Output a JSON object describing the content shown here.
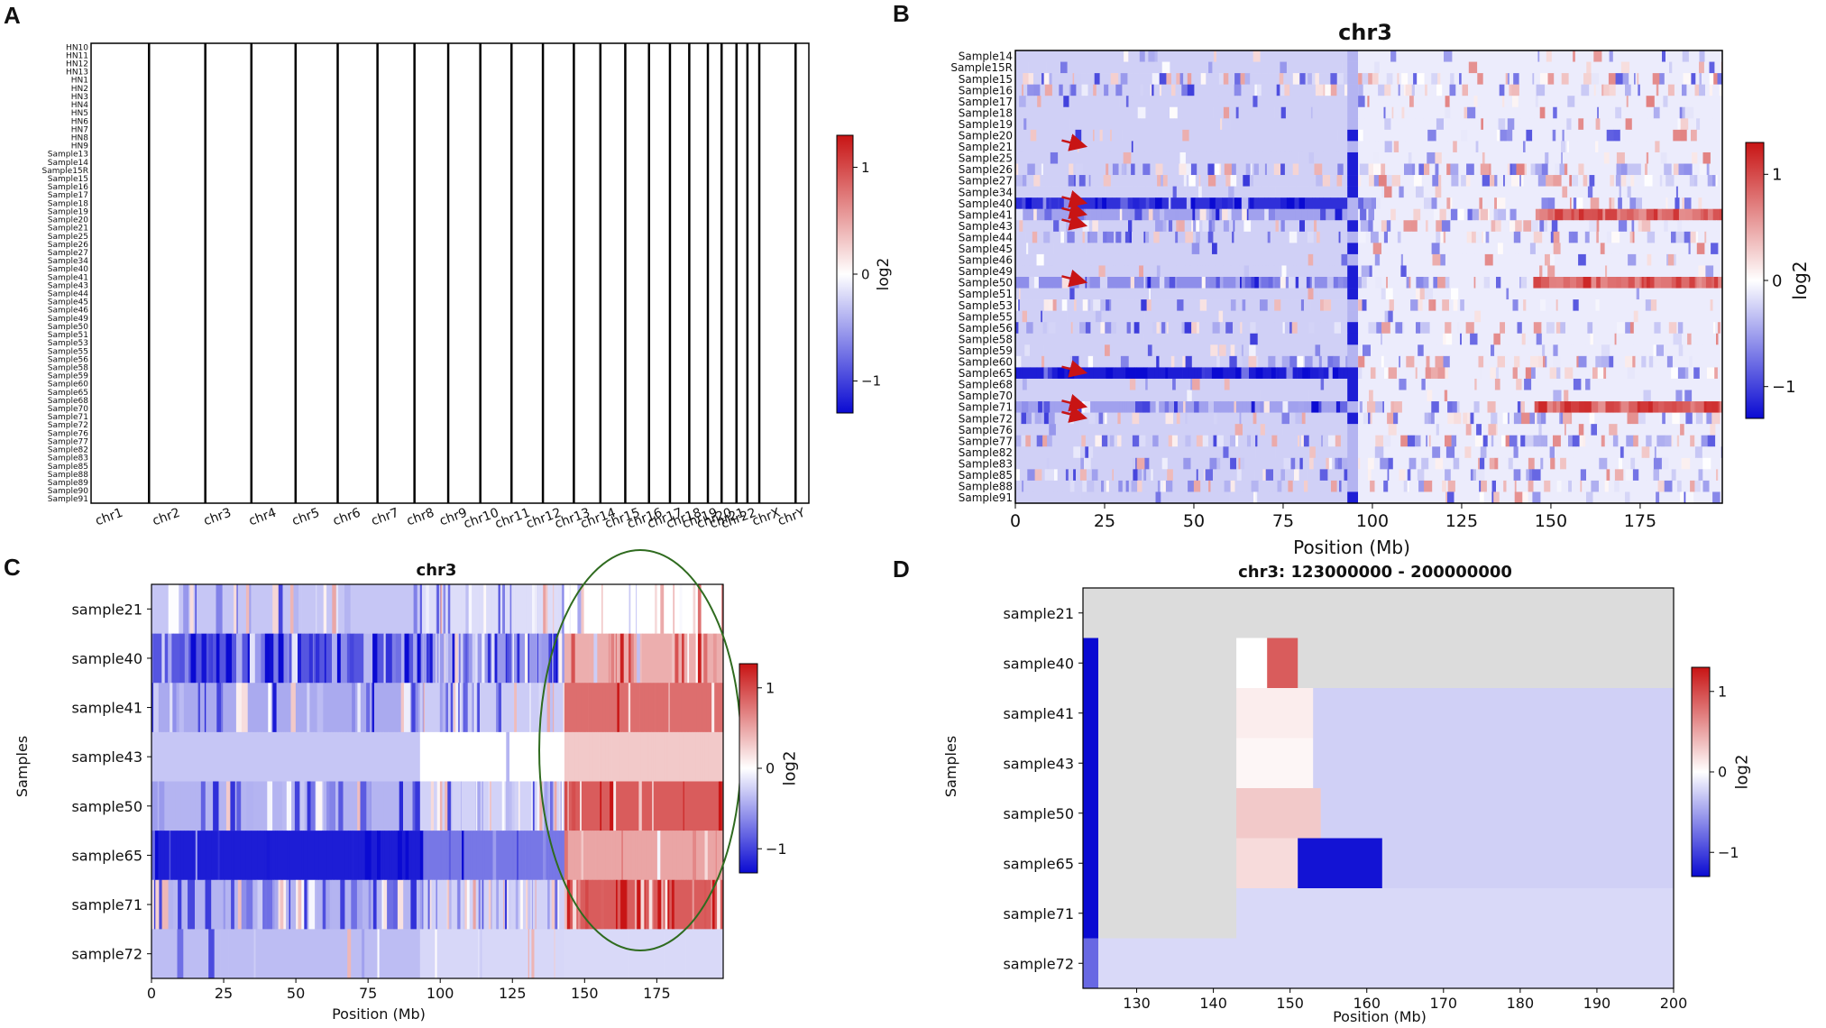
{
  "figure": {
    "labels": [
      "A",
      "B",
      "C",
      "D"
    ]
  },
  "colors": {
    "neg": "#0a0ad2",
    "mid": "#ffffff",
    "pos": "#c81414",
    "nodata": "#dcdcdc",
    "ellipse": "#2f6b1f",
    "arrow": "#c81414",
    "grid_line": "#000000"
  },
  "chart_data": [
    {
      "id": "A",
      "type": "heatmap",
      "title": "",
      "colorbar": {
        "label": "log2",
        "ticks": [
          1,
          0,
          -1
        ],
        "tick_labels": [
          "1",
          "0",
          "−1"
        ],
        "vmin": -1.3,
        "vmax": 1.3
      },
      "x_tick_labels": [
        "chr1",
        "chr2",
        "chr3",
        "chr4",
        "chr5",
        "chr6",
        "chr7",
        "chr8",
        "chr9",
        "chr10",
        "chr11",
        "chr12",
        "chr13",
        "chr14",
        "chr15",
        "chr16",
        "chr17",
        "chr18",
        "chr19",
        "chr20",
        "chr21",
        "chr22",
        "chrX",
        "chrY"
      ],
      "chrom_rel_sizes": [
        249,
        242,
        198,
        190,
        181,
        171,
        159,
        145,
        138,
        134,
        135,
        133,
        114,
        107,
        102,
        90,
        83,
        80,
        59,
        64,
        47,
        51,
        156,
        57
      ],
      "rows": 56,
      "row_labels_visible": [
        "HN10",
        "HN11",
        "HN12",
        "HN13",
        "HN1",
        "HN2",
        "HN3",
        "HN4",
        "HN5",
        "HN6",
        "HN7",
        "HN8",
        "HN9",
        "Sample13",
        "Sample14",
        "Sample15R",
        "Sample15",
        "Sample16",
        "Sample17",
        "Sample18",
        "Sample19",
        "Sample20",
        "Sample21",
        "Sample25",
        "Sample26",
        "Sample27",
        "Sample34",
        "Sample40",
        "Sample41",
        "Sample43",
        "Sample44",
        "Sample45",
        "Sample46",
        "Sample49",
        "Sample50",
        "Sample51",
        "Sample53",
        "Sample55",
        "Sample56",
        "Sample58",
        "Sample59",
        "Sample60",
        "Sample65",
        "Sample68",
        "Sample70",
        "Sample71",
        "Sample72",
        "Sample76",
        "Sample77",
        "Sample82",
        "Sample83",
        "Sample85",
        "Sample88",
        "Sample89",
        "Sample90",
        "Sample91"
      ]
    },
    {
      "id": "B",
      "type": "heatmap",
      "title": "chr3",
      "xlabel": "Position (Mb)",
      "ylabel": "",
      "xlim": [
        0,
        198
      ],
      "x_ticks": [
        0,
        25,
        50,
        75,
        100,
        125,
        150,
        175
      ],
      "colorbar": {
        "label": "log2",
        "ticks": [
          1,
          0,
          -1
        ],
        "tick_labels": [
          "1",
          "0",
          "−1"
        ],
        "vmin": -1.3,
        "vmax": 1.3
      },
      "samples": [
        "Sample14",
        "Sample15R",
        "Sample15",
        "Sample16",
        "Sample17",
        "Sample18",
        "Sample19",
        "Sample20",
        "Sample21",
        "Sample25",
        "Sample26",
        "Sample27",
        "Sample34",
        "Sample40",
        "Sample41",
        "Sample43",
        "Sample44",
        "Sample45",
        "Sample46",
        "Sample49",
        "Sample50",
        "Sample51",
        "Sample53",
        "Sample55",
        "Sample56",
        "Sample58",
        "Sample59",
        "Sample60",
        "Sample65",
        "Sample68",
        "Sample70",
        "Sample71",
        "Sample72",
        "Sample76",
        "Sample77",
        "Sample82",
        "Sample83",
        "Sample85",
        "Sample88",
        "Sample91"
      ],
      "arrow_rows": [
        "Sample21",
        "Sample40",
        "Sample41",
        "Sample43",
        "Sample50",
        "Sample65",
        "Sample71",
        "Sample72"
      ]
    },
    {
      "id": "C",
      "type": "heatmap",
      "title": "chr3",
      "xlabel": "Position (Mb)",
      "ylabel": "Samples",
      "xlim": [
        0,
        198
      ],
      "x_ticks": [
        0,
        25,
        50,
        75,
        100,
        125,
        150,
        175
      ],
      "colorbar": {
        "label": "log2",
        "ticks": [
          1,
          0,
          -1
        ],
        "tick_labels": [
          "1",
          "0",
          "−1"
        ],
        "vmin": -1.3,
        "vmax": 1.3
      },
      "samples": [
        "sample21",
        "sample40",
        "sample41",
        "sample43",
        "sample50",
        "sample65",
        "sample71",
        "sample72"
      ],
      "highlight_region_mb": [
        143,
        198
      ]
    },
    {
      "id": "D",
      "type": "heatmap",
      "title": "chr3: 123000000 - 200000000",
      "xlabel": "Position (Mb)",
      "ylabel": "Samples",
      "xlim": [
        123,
        200
      ],
      "x_ticks": [
        130,
        140,
        150,
        160,
        170,
        180,
        190,
        200
      ],
      "colorbar": {
        "label": "log2",
        "ticks": [
          1,
          0,
          -1
        ],
        "tick_labels": [
          "1",
          "0",
          "−1"
        ],
        "vmin": -1.3,
        "vmax": 1.3
      },
      "samples": [
        "sample21",
        "sample40",
        "sample41",
        "sample43",
        "sample50",
        "sample65",
        "sample71",
        "sample72"
      ],
      "segments": [
        {
          "sample": "sample21",
          "start": 123,
          "end": 200,
          "log2": null
        },
        {
          "sample": "sample40",
          "start": 123,
          "end": 125,
          "log2": -1.3
        },
        {
          "sample": "sample40",
          "start": 125,
          "end": 143,
          "log2": null
        },
        {
          "sample": "sample40",
          "start": 143,
          "end": 147,
          "log2": 0.0
        },
        {
          "sample": "sample40",
          "start": 147,
          "end": 151,
          "log2": 0.9
        },
        {
          "sample": "sample40",
          "start": 151,
          "end": 200,
          "log2": null
        },
        {
          "sample": "sample41",
          "start": 123,
          "end": 125,
          "log2": -1.3
        },
        {
          "sample": "sample41",
          "start": 125,
          "end": 143,
          "log2": null
        },
        {
          "sample": "sample41",
          "start": 143,
          "end": 153,
          "log2": 0.1
        },
        {
          "sample": "sample41",
          "start": 153,
          "end": 200,
          "log2": -0.25
        },
        {
          "sample": "sample43",
          "start": 123,
          "end": 125,
          "log2": -1.3
        },
        {
          "sample": "sample43",
          "start": 125,
          "end": 143,
          "log2": null
        },
        {
          "sample": "sample43",
          "start": 143,
          "end": 153,
          "log2": 0.05
        },
        {
          "sample": "sample43",
          "start": 153,
          "end": 200,
          "log2": -0.25
        },
        {
          "sample": "sample50",
          "start": 123,
          "end": 125,
          "log2": -1.3
        },
        {
          "sample": "sample50",
          "start": 125,
          "end": 143,
          "log2": null
        },
        {
          "sample": "sample50",
          "start": 143,
          "end": 154,
          "log2": 0.3
        },
        {
          "sample": "sample50",
          "start": 154,
          "end": 200,
          "log2": -0.25
        },
        {
          "sample": "sample65",
          "start": 123,
          "end": 125,
          "log2": -1.3
        },
        {
          "sample": "sample65",
          "start": 125,
          "end": 143,
          "log2": null
        },
        {
          "sample": "sample65",
          "start": 143,
          "end": 151,
          "log2": 0.2
        },
        {
          "sample": "sample65",
          "start": 151,
          "end": 162,
          "log2": -1.25
        },
        {
          "sample": "sample65",
          "start": 162,
          "end": 200,
          "log2": -0.25
        },
        {
          "sample": "sample71",
          "start": 123,
          "end": 125,
          "log2": -1.3
        },
        {
          "sample": "sample71",
          "start": 125,
          "end": 143,
          "log2": null
        },
        {
          "sample": "sample71",
          "start": 143,
          "end": 200,
          "log2": -0.2
        },
        {
          "sample": "sample72",
          "start": 123,
          "end": 125,
          "log2": -0.8
        },
        {
          "sample": "sample72",
          "start": 125,
          "end": 200,
          "log2": -0.2
        }
      ]
    }
  ]
}
